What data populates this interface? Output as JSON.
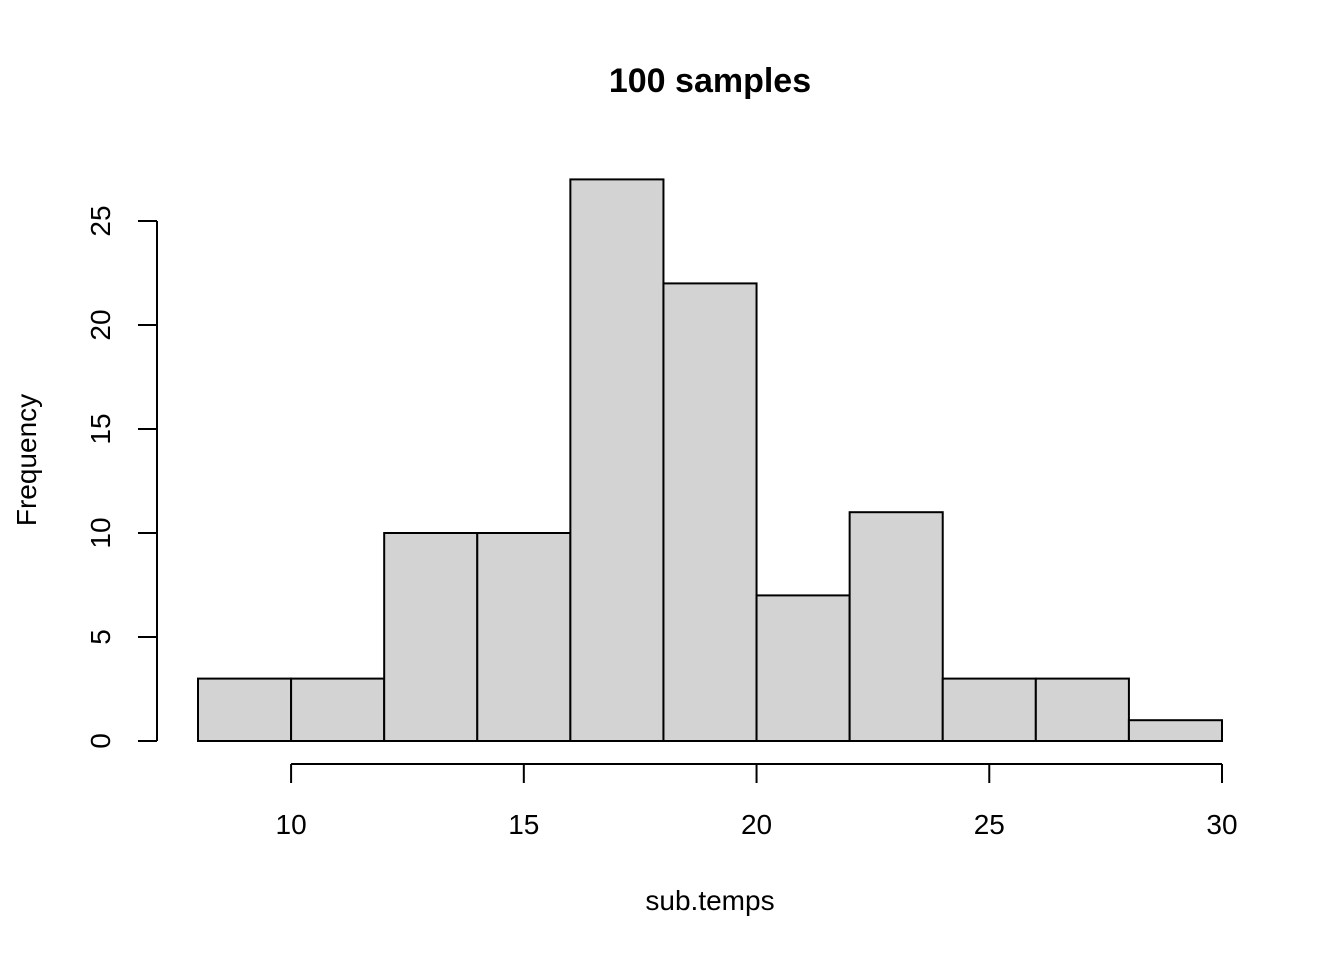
{
  "chart_data": {
    "type": "bar",
    "subtype": "histogram",
    "title": "100 samples",
    "xlabel": "sub.temps",
    "ylabel": "Frequency",
    "bins": [
      {
        "start": 8,
        "end": 10,
        "count": 3
      },
      {
        "start": 10,
        "end": 12,
        "count": 3
      },
      {
        "start": 12,
        "end": 14,
        "count": 10
      },
      {
        "start": 14,
        "end": 16,
        "count": 10
      },
      {
        "start": 16,
        "end": 18,
        "count": 27
      },
      {
        "start": 18,
        "end": 20,
        "count": 22
      },
      {
        "start": 20,
        "end": 22,
        "count": 7
      },
      {
        "start": 22,
        "end": 24,
        "count": 11
      },
      {
        "start": 24,
        "end": 26,
        "count": 3
      },
      {
        "start": 26,
        "end": 28,
        "count": 3
      },
      {
        "start": 28,
        "end": 30,
        "count": 1
      }
    ],
    "xticks": [
      10,
      15,
      20,
      25,
      30
    ],
    "yticks": [
      0,
      5,
      10,
      15,
      20,
      25
    ],
    "xlim": [
      8,
      30
    ],
    "ylim": [
      0,
      27
    ],
    "bar_color": "#d3d3d3",
    "edge_color": "#000000",
    "grid": false,
    "legend": "none"
  }
}
